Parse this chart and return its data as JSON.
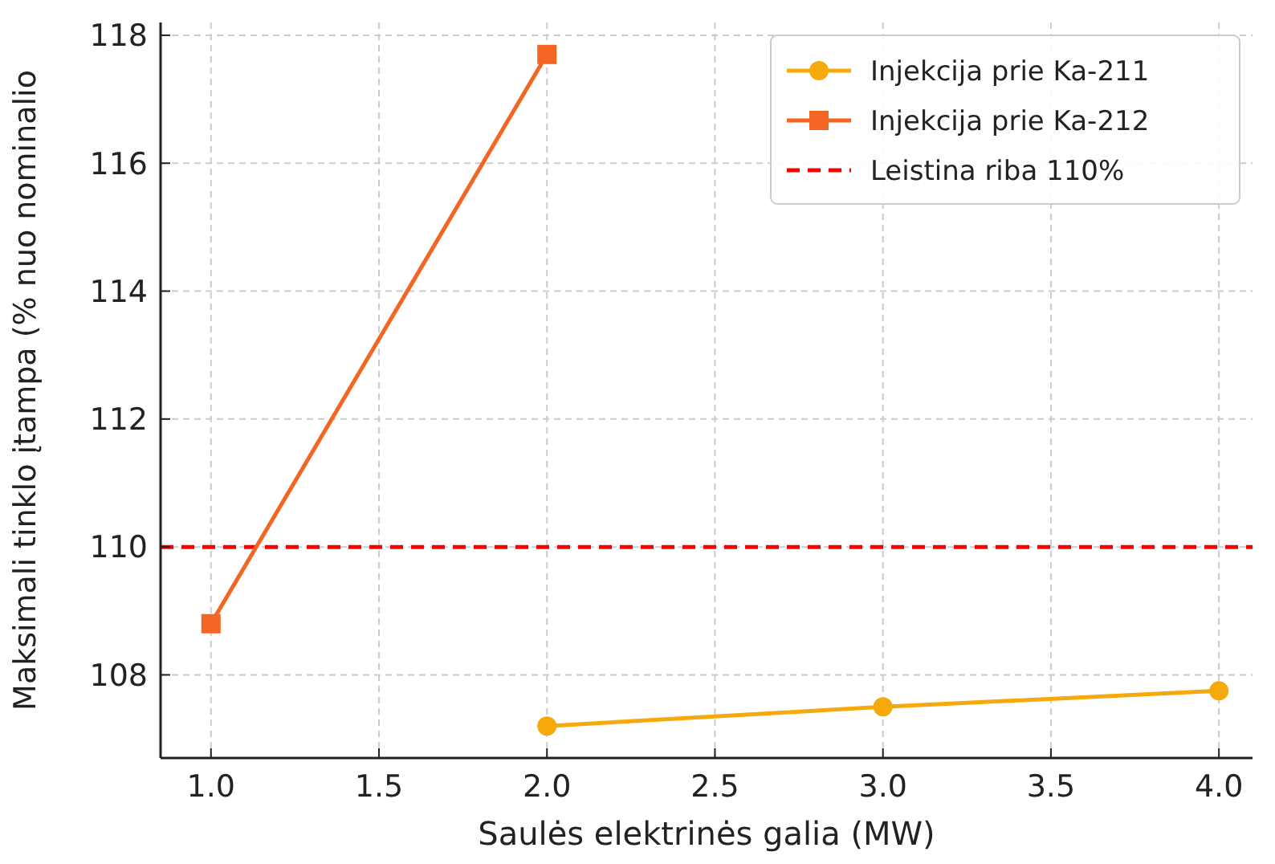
{
  "chart_data": {
    "type": "line",
    "xlabel": "Saulės elektrinės galia (MW)",
    "ylabel": "Maksimali tinklo įtampa (% nuo nominalio",
    "series": [
      {
        "name": "Injekcija prie Ka-211",
        "color": "#f5a90a",
        "x": [
          2,
          3,
          4
        ],
        "values": [
          107.2,
          107.5,
          107.75
        ],
        "marker": "circle"
      },
      {
        "name": "Injekcija prie Ka-212",
        "color": "#f26522",
        "x": [
          1,
          2
        ],
        "values": [
          108.8,
          117.7
        ],
        "marker": "square"
      }
    ],
    "ref_lines": [
      {
        "axis": "y",
        "value": 110,
        "label": "Leistina riba 110%",
        "color": "#ff0000",
        "line_style": "dashed"
      }
    ],
    "xlim": [
      0.85,
      4.1
    ],
    "ylim": [
      106.7,
      118.2
    ],
    "xticks": [
      {
        "value": 1,
        "label": "1.0"
      },
      {
        "value": 1.5,
        "label": "1.5"
      },
      {
        "value": 2,
        "label": "2.0"
      },
      {
        "value": 2.5,
        "label": "2.5"
      },
      {
        "value": 3,
        "label": "3.0"
      },
      {
        "value": 3.5,
        "label": "3.5"
      },
      {
        "value": 4,
        "label": "4.0"
      }
    ],
    "yticks": [
      108,
      110,
      112,
      114,
      116,
      118
    ],
    "grid": true,
    "legend": "top right",
    "line_style": "solid"
  }
}
